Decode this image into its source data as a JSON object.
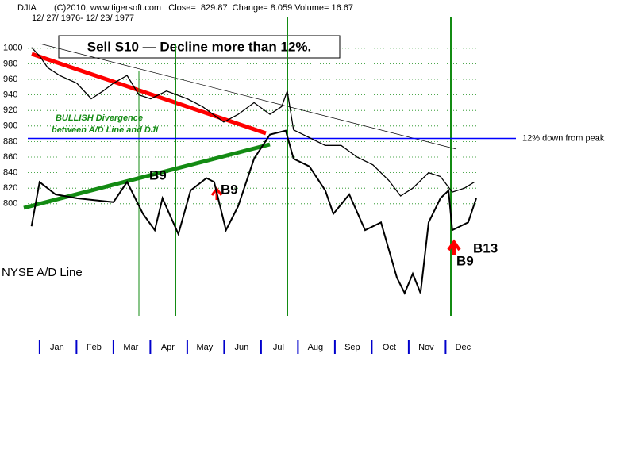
{
  "chart_data": {
    "type": "line",
    "header": "(C)2010, www.tigersoft.com   Close=  829.87  Change= 8.059 Volume= 16.67",
    "date_range": "12/ 27/ 1976- 12/ 23/ 1977",
    "title": "Sell S10 — Decline more than 12%.",
    "annotations": [
      "BULLISH Divergence",
      "between A/D Line and DJI",
      "B9",
      "B9",
      "B9",
      "B13"
    ],
    "hline": {
      "value": 884,
      "label": "12% down from peak",
      "color": "#0000ff"
    },
    "xlim": [
      -0.32,
      11.83
    ],
    "xticks": [
      {
        "value": 0,
        "label": "Jan"
      },
      {
        "value": 1,
        "label": "Feb"
      },
      {
        "value": 2,
        "label": "Mar"
      },
      {
        "value": 3,
        "label": "Apr"
      },
      {
        "value": 4,
        "label": "May"
      },
      {
        "value": 5,
        "label": "Jun"
      },
      {
        "value": 6,
        "label": "Jul"
      },
      {
        "value": 7,
        "label": "Aug"
      },
      {
        "value": 8,
        "label": "Sep"
      },
      {
        "value": 9,
        "label": "Oct"
      },
      {
        "value": 10,
        "label": "Nov"
      },
      {
        "value": 11,
        "label": "Dec"
      }
    ],
    "ylim": [
      660,
      1010
    ],
    "yticks": [
      800,
      820,
      840,
      860,
      880,
      900,
      920,
      940,
      960,
      980,
      1000
    ],
    "grid": true,
    "series": [
      {
        "name": "DJIA",
        "color": "#000000",
        "x": [
          -0.22,
          0,
          0.22,
          0.54,
          1.01,
          1.4,
          1.72,
          2,
          2.37,
          2.69,
          3.01,
          3.44,
          4,
          4.41,
          4.99,
          5.38,
          5.81,
          6.24,
          6.56,
          6.71,
          6.88,
          7.31,
          7.74,
          8.17,
          8.6,
          9.03,
          9.46,
          9.78,
          10.11,
          10.54,
          10.86,
          11.18,
          11.51,
          11.78
        ],
        "values": [
          1001,
          990,
          975,
          965,
          955,
          935,
          945,
          955,
          965,
          940,
          935,
          945,
          935,
          925,
          905,
          915,
          930,
          915,
          925,
          945,
          895,
          885,
          875,
          875,
          860,
          850,
          830,
          810,
          820,
          840,
          835,
          815,
          820,
          828
        ]
      },
      {
        "name": "NYSE A/D Line",
        "color": "#000000",
        "x": [
          -0.22,
          0,
          0.43,
          1.01,
          2,
          2.37,
          2.8,
          3.12,
          3.33,
          3.76,
          4.09,
          4.52,
          4.73,
          5.05,
          5.38,
          5.81,
          6.24,
          6.67,
          6.88,
          7.31,
          7.74,
          7.96,
          8.39,
          8.82,
          9.25,
          9.68,
          9.89,
          10.11,
          10.32,
          10.54,
          10.86,
          11.08,
          11.18,
          11.61,
          11.83
        ],
        "values": [
          771,
          828,
          812,
          807,
          802,
          828,
          787,
          766,
          807,
          761,
          817,
          833,
          828,
          766,
          797,
          858,
          889,
          894,
          858,
          848,
          817,
          787,
          812,
          766,
          776,
          705,
          685,
          710,
          685,
          776,
          807,
          817,
          766,
          776,
          807
        ]
      }
    ]
  }
}
